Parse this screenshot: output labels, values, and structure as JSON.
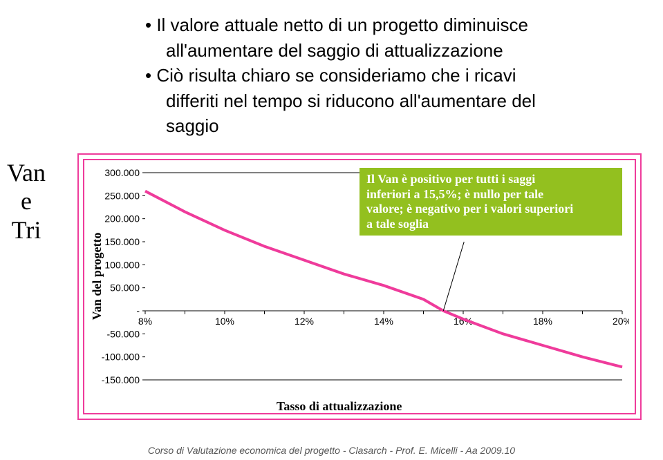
{
  "bullets": {
    "b1": "Il valore attuale netto di un progetto diminuisce",
    "b1b": "all'aumentare del saggio di attualizzazione",
    "b2": "Ciò risulta chiaro se consideriamo che i ricavi",
    "b2b": "differiti nel tempo si riducono all'aumentare del",
    "b2c": "saggio"
  },
  "side_label": {
    "l1": "Van",
    "l2": "e",
    "l3": "Tri"
  },
  "chart": {
    "type": "line",
    "y_title": "Van del progetto",
    "x_title": "Tasso di attualizzazione",
    "frame_border": "#ef3b9b",
    "plot_bg": "#ffffff",
    "grid_color": "#000000",
    "axis_color": "#000000",
    "line_color": "#ef3b9b",
    "line_width": 4,
    "ylim": [
      -150000,
      300000
    ],
    "ytick_step": 50000,
    "ytick_labels": [
      "-150.000",
      "-100.000",
      "-50.000",
      "-",
      "50.000",
      "100.000",
      "150.000",
      "200.000",
      "250.000",
      "300.000"
    ],
    "xlim_pct": [
      8,
      20
    ],
    "xtick_step_pct": 2,
    "xtick_labels": [
      "8%",
      "10%",
      "12%",
      "14%",
      "16%",
      "18%",
      "20%"
    ],
    "series": {
      "x_pct": [
        8,
        9,
        10,
        11,
        12,
        13,
        14,
        15,
        15.5,
        16,
        17,
        18,
        19,
        20
      ],
      "y": [
        260000,
        215000,
        175000,
        140000,
        110000,
        80000,
        55000,
        25000,
        0,
        -18000,
        -50000,
        -75000,
        -100000,
        -122000
      ]
    },
    "tick_fontsize": 14,
    "axis_title_fontsize": 18
  },
  "callout": {
    "bg": "#93c01f",
    "fg": "#ffffff",
    "l1": "Il Van è positivo per tutti i saggi",
    "l2": "inferiori a 15,5%; è nullo per tale",
    "l3": "valore; è negativo per i valori superiori",
    "l4": "a tale soglia"
  },
  "footer": "Corso di Valutazione economica del progetto - Clasarch - Prof. E. Micelli - Aa 2009.10"
}
